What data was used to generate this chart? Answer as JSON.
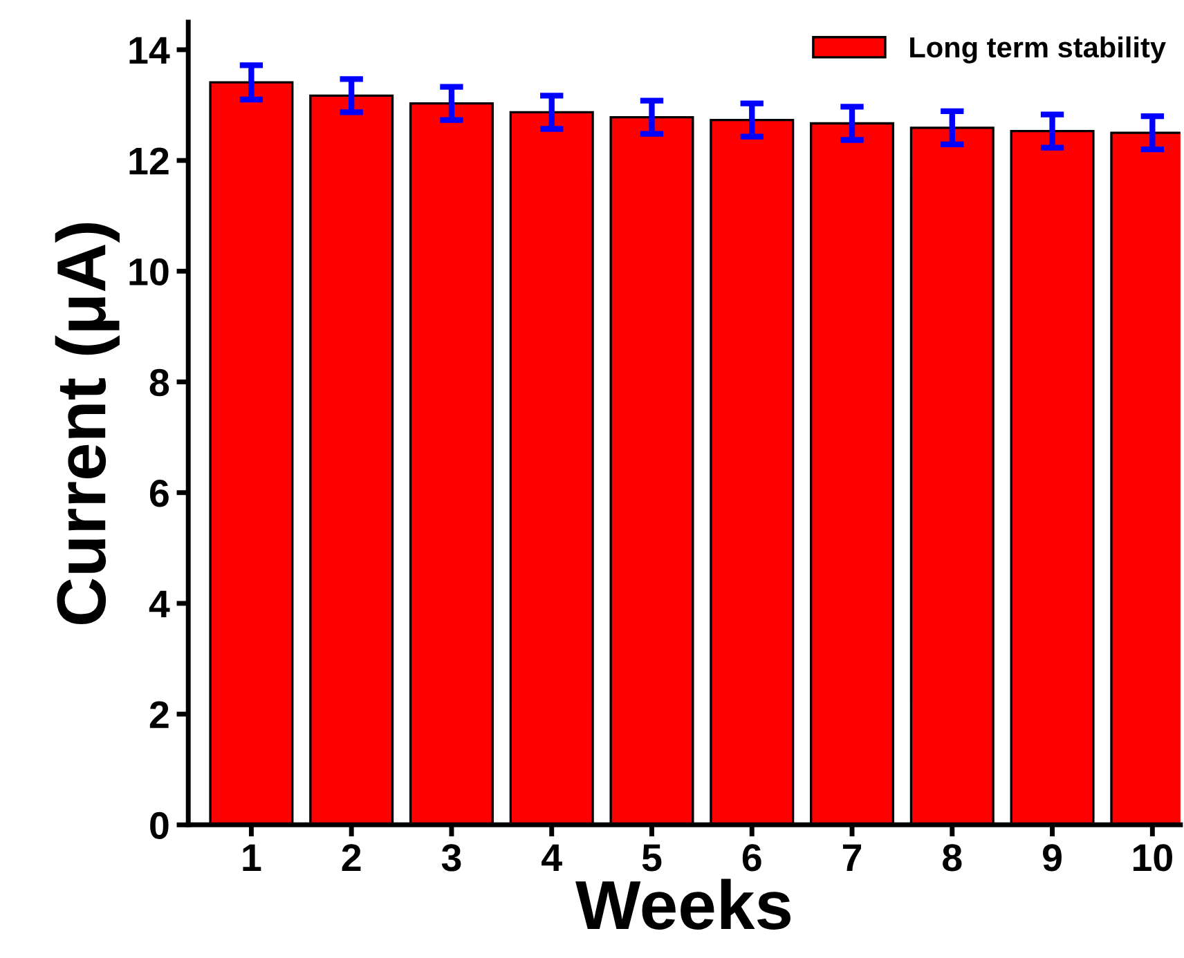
{
  "chart_data": {
    "type": "bar",
    "xlabel": "Weeks",
    "ylabel": "Current (μA)",
    "categories": [
      "1",
      "2",
      "3",
      "4",
      "5",
      "6",
      "7",
      "8",
      "9",
      "10"
    ],
    "series": [
      {
        "name": "Long term stability",
        "color": "#ff0000",
        "values": [
          13.41,
          13.17,
          13.03,
          12.87,
          12.78,
          12.73,
          12.67,
          12.59,
          12.53,
          12.5
        ],
        "errors": [
          0.31,
          0.3,
          0.3,
          0.3,
          0.3,
          0.3,
          0.3,
          0.3,
          0.3,
          0.3
        ]
      }
    ],
    "ylim": [
      0,
      14.5
    ],
    "yticks": [
      0,
      2,
      4,
      6,
      8,
      10,
      12,
      14
    ],
    "grid": false,
    "legend": "top right"
  }
}
